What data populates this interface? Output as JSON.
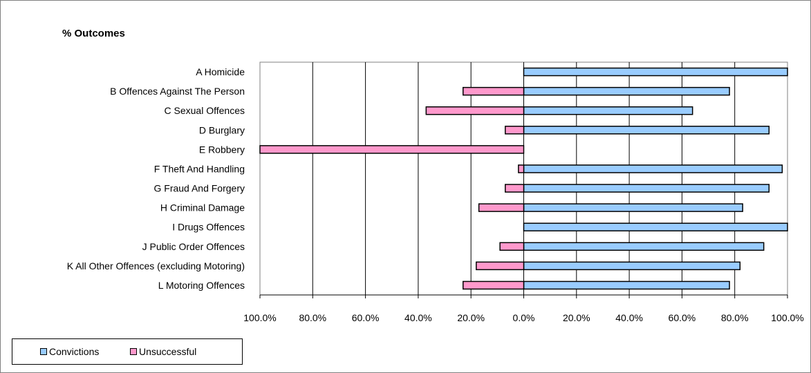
{
  "chart_data": {
    "type": "bar",
    "orientation": "horizontal",
    "title": "% Outcomes",
    "xlabel": "",
    "ylabel": "",
    "xlim": [
      -1.0,
      1.0
    ],
    "x_tick_labels": [
      "100.0%",
      "80.0%",
      "60.0%",
      "40.0%",
      "20.0%",
      "0.0%",
      "20.0%",
      "40.0%",
      "60.0%",
      "80.0%",
      "100.0%"
    ],
    "x_tick_values": [
      -1.0,
      -0.8,
      -0.6,
      -0.4,
      -0.2,
      0.0,
      0.2,
      0.4,
      0.6,
      0.8,
      1.0
    ],
    "grid": true,
    "legend_placement": "bottom-left",
    "categories": [
      "A Homicide",
      "B Offences Against The Person",
      "C Sexual Offences",
      "D Burglary",
      "E Robbery",
      "F Theft And Handling",
      "G Fraud And Forgery",
      "H Criminal Damage",
      "I Drugs Offences",
      "J Public Order Offences",
      "K All Other Offences (excluding Motoring)",
      "L Motoring Offences"
    ],
    "series": [
      {
        "name": "Convictions",
        "color": "#99ccff",
        "values": [
          1.0,
          0.78,
          0.64,
          0.93,
          0.0,
          0.98,
          0.93,
          0.83,
          1.0,
          0.91,
          0.82,
          0.78
        ]
      },
      {
        "name": "Unsuccessful",
        "color": "#ff99cc",
        "values": [
          0.0,
          -0.23,
          -0.37,
          -0.07,
          -1.0,
          -0.02,
          -0.07,
          -0.17,
          0.0,
          -0.09,
          -0.18,
          -0.23
        ]
      }
    ]
  }
}
